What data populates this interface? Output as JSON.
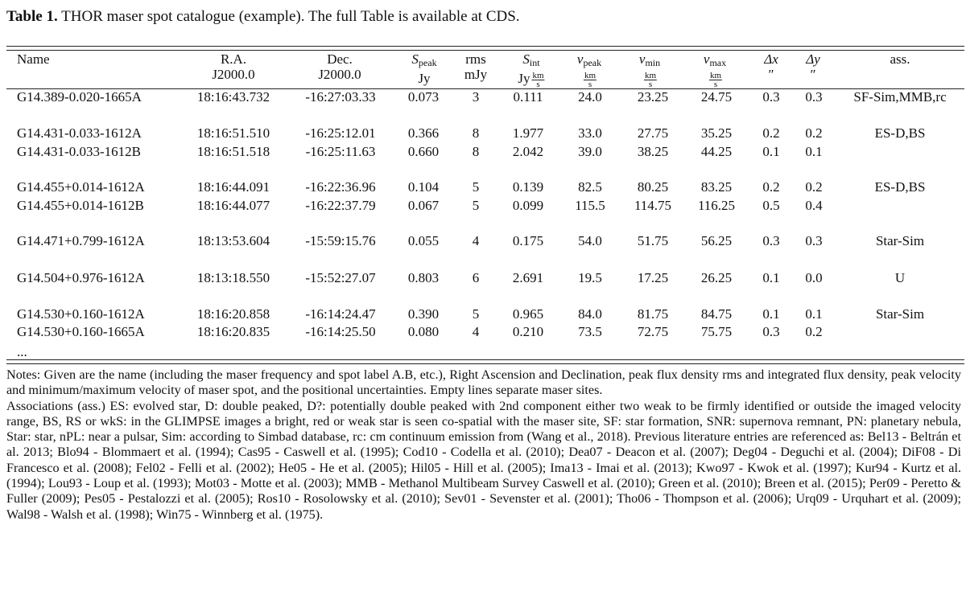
{
  "caption": {
    "label": "Table 1.",
    "text": "THOR maser spot catalogue (example). The full Table is available at CDS."
  },
  "header": {
    "name": "Name",
    "ra": "R.A.",
    "ra_unit": "J2000.0",
    "dec": "Dec.",
    "dec_unit": "J2000.0",
    "speak_sym": "S",
    "speak_sub": "peak",
    "speak_unit": "Jy",
    "rms": "rms",
    "rms_unit": "mJy",
    "sint_sym": "S",
    "sint_sub": "int",
    "sint_unit": "Jy",
    "vpeak_sym": "v",
    "vpeak_sub": "peak",
    "vmin_sym": "v",
    "vmin_sub": "min",
    "vmax_sym": "v",
    "vmax_sub": "max",
    "vel_num": "km",
    "vel_den": "s",
    "dx": "Δx",
    "dy": "Δy",
    "arcsec": "″",
    "ass": "ass."
  },
  "rows": [
    {
      "name": "G14.389-0.020-1665A",
      "ra": "18:16:43.732",
      "dec": "-16:27:03.33",
      "speak": "0.073",
      "rms": "3",
      "sint": "0.111",
      "vpeak": "24.0",
      "vmin": "23.25",
      "vmax": "24.75",
      "dx": "0.3",
      "dy": "0.3",
      "ass": "SF-Sim,MMB,rc"
    },
    {
      "name": "G14.431-0.033-1612A",
      "ra": "18:16:51.510",
      "dec": "-16:25:12.01",
      "speak": "0.366",
      "rms": "8",
      "sint": "1.977",
      "vpeak": "33.0",
      "vmin": "27.75",
      "vmax": "35.25",
      "dx": "0.2",
      "dy": "0.2",
      "ass": "ES-D,BS"
    },
    {
      "name": "G14.431-0.033-1612B",
      "ra": "18:16:51.518",
      "dec": "-16:25:11.63",
      "speak": "0.660",
      "rms": "8",
      "sint": "2.042",
      "vpeak": "39.0",
      "vmin": "38.25",
      "vmax": "44.25",
      "dx": "0.1",
      "dy": "0.1",
      "ass": ""
    },
    {
      "name": "G14.455+0.014-1612A",
      "ra": "18:16:44.091",
      "dec": "-16:22:36.96",
      "speak": "0.104",
      "rms": "5",
      "sint": "0.139",
      "vpeak": "82.5",
      "vmin": "80.25",
      "vmax": "83.25",
      "dx": "0.2",
      "dy": "0.2",
      "ass": "ES-D,BS"
    },
    {
      "name": "G14.455+0.014-1612B",
      "ra": "18:16:44.077",
      "dec": "-16:22:37.79",
      "speak": "0.067",
      "rms": "5",
      "sint": "0.099",
      "vpeak": "115.5",
      "vmin": "114.75",
      "vmax": "116.25",
      "dx": "0.5",
      "dy": "0.4",
      "ass": ""
    },
    {
      "name": "G14.471+0.799-1612A",
      "ra": "18:13:53.604",
      "dec": "-15:59:15.76",
      "speak": "0.055",
      "rms": "4",
      "sint": "0.175",
      "vpeak": "54.0",
      "vmin": "51.75",
      "vmax": "56.25",
      "dx": "0.3",
      "dy": "0.3",
      "ass": "Star-Sim"
    },
    {
      "name": "G14.504+0.976-1612A",
      "ra": "18:13:18.550",
      "dec": "-15:52:27.07",
      "speak": "0.803",
      "rms": "6",
      "sint": "2.691",
      "vpeak": "19.5",
      "vmin": "17.25",
      "vmax": "26.25",
      "dx": "0.1",
      "dy": "0.0",
      "ass": "U"
    },
    {
      "name": "G14.530+0.160-1612A",
      "ra": "18:16:20.858",
      "dec": "-16:14:24.47",
      "speak": "0.390",
      "rms": "5",
      "sint": "0.965",
      "vpeak": "84.0",
      "vmin": "81.75",
      "vmax": "84.75",
      "dx": "0.1",
      "dy": "0.1",
      "ass": "Star-Sim"
    },
    {
      "name": "G14.530+0.160-1665A",
      "ra": "18:16:20.835",
      "dec": "-16:14:25.50",
      "speak": "0.080",
      "rms": "4",
      "sint": "0.210",
      "vpeak": "73.5",
      "vmin": "72.75",
      "vmax": "75.75",
      "dx": "0.3",
      "dy": "0.2",
      "ass": ""
    }
  ],
  "ellipsis": "...",
  "notes": [
    "Notes: Given are the name (including the maser frequency and spot label A.B, etc.), Right Ascension and Declination, peak flux density rms and integrated flux density, peak velocity and minimum/maximum velocity of maser spot, and the positional uncertainties. Empty lines separate maser sites.",
    "Associations (ass.) ES: evolved star, D: double peaked, D?: potentially double peaked with 2nd component either two weak to be firmly identified or outside the imaged velocity range, BS, RS or wkS: in the GLIMPSE images a bright, red or weak star is seen co-spatial with the maser site, SF: star formation, SNR: supernova remnant, PN: planetary nebula, Star: star, nPL: near a pulsar, Sim: according to Simbad database, rc: cm continuum emission from (Wang et al., 2018). Previous literature entries are referenced as: Bel13 - Beltrán et al. 2013; Blo94 - Blommaert et al. (1994); Cas95 - Caswell et al. (1995); Cod10 - Codella et al. (2010); Dea07 - Deacon et al. (2007); Deg04 - Deguchi et al. (2004); DiF08 - Di Francesco et al. (2008); Fel02 - Felli et al. (2002); He05 - He et al. (2005); Hil05 - Hill et al. (2005); Ima13 - Imai et al. (2013); Kwo97 - Kwok et al. (1997); Kur94 - Kurtz et al. (1994); Lou93 - Loup et al. (1993); Mot03 - Motte et al. (2003); MMB - Methanol Multibeam Survey Caswell et al. (2010); Green et al. (2010); Breen et al. (2015); Per09 - Peretto & Fuller (2009); Pes05 - Pestalozzi et al. (2005); Ros10 - Rosolowsky et al. (2010); Sev01 - Sevenster et al. (2001); Tho06 - Thompson et al. (2006); Urq09 - Urquhart et al. (2009); Wal98 - Walsh et al. (1998); Win75 - Winnberg et al. (1975)."
  ]
}
